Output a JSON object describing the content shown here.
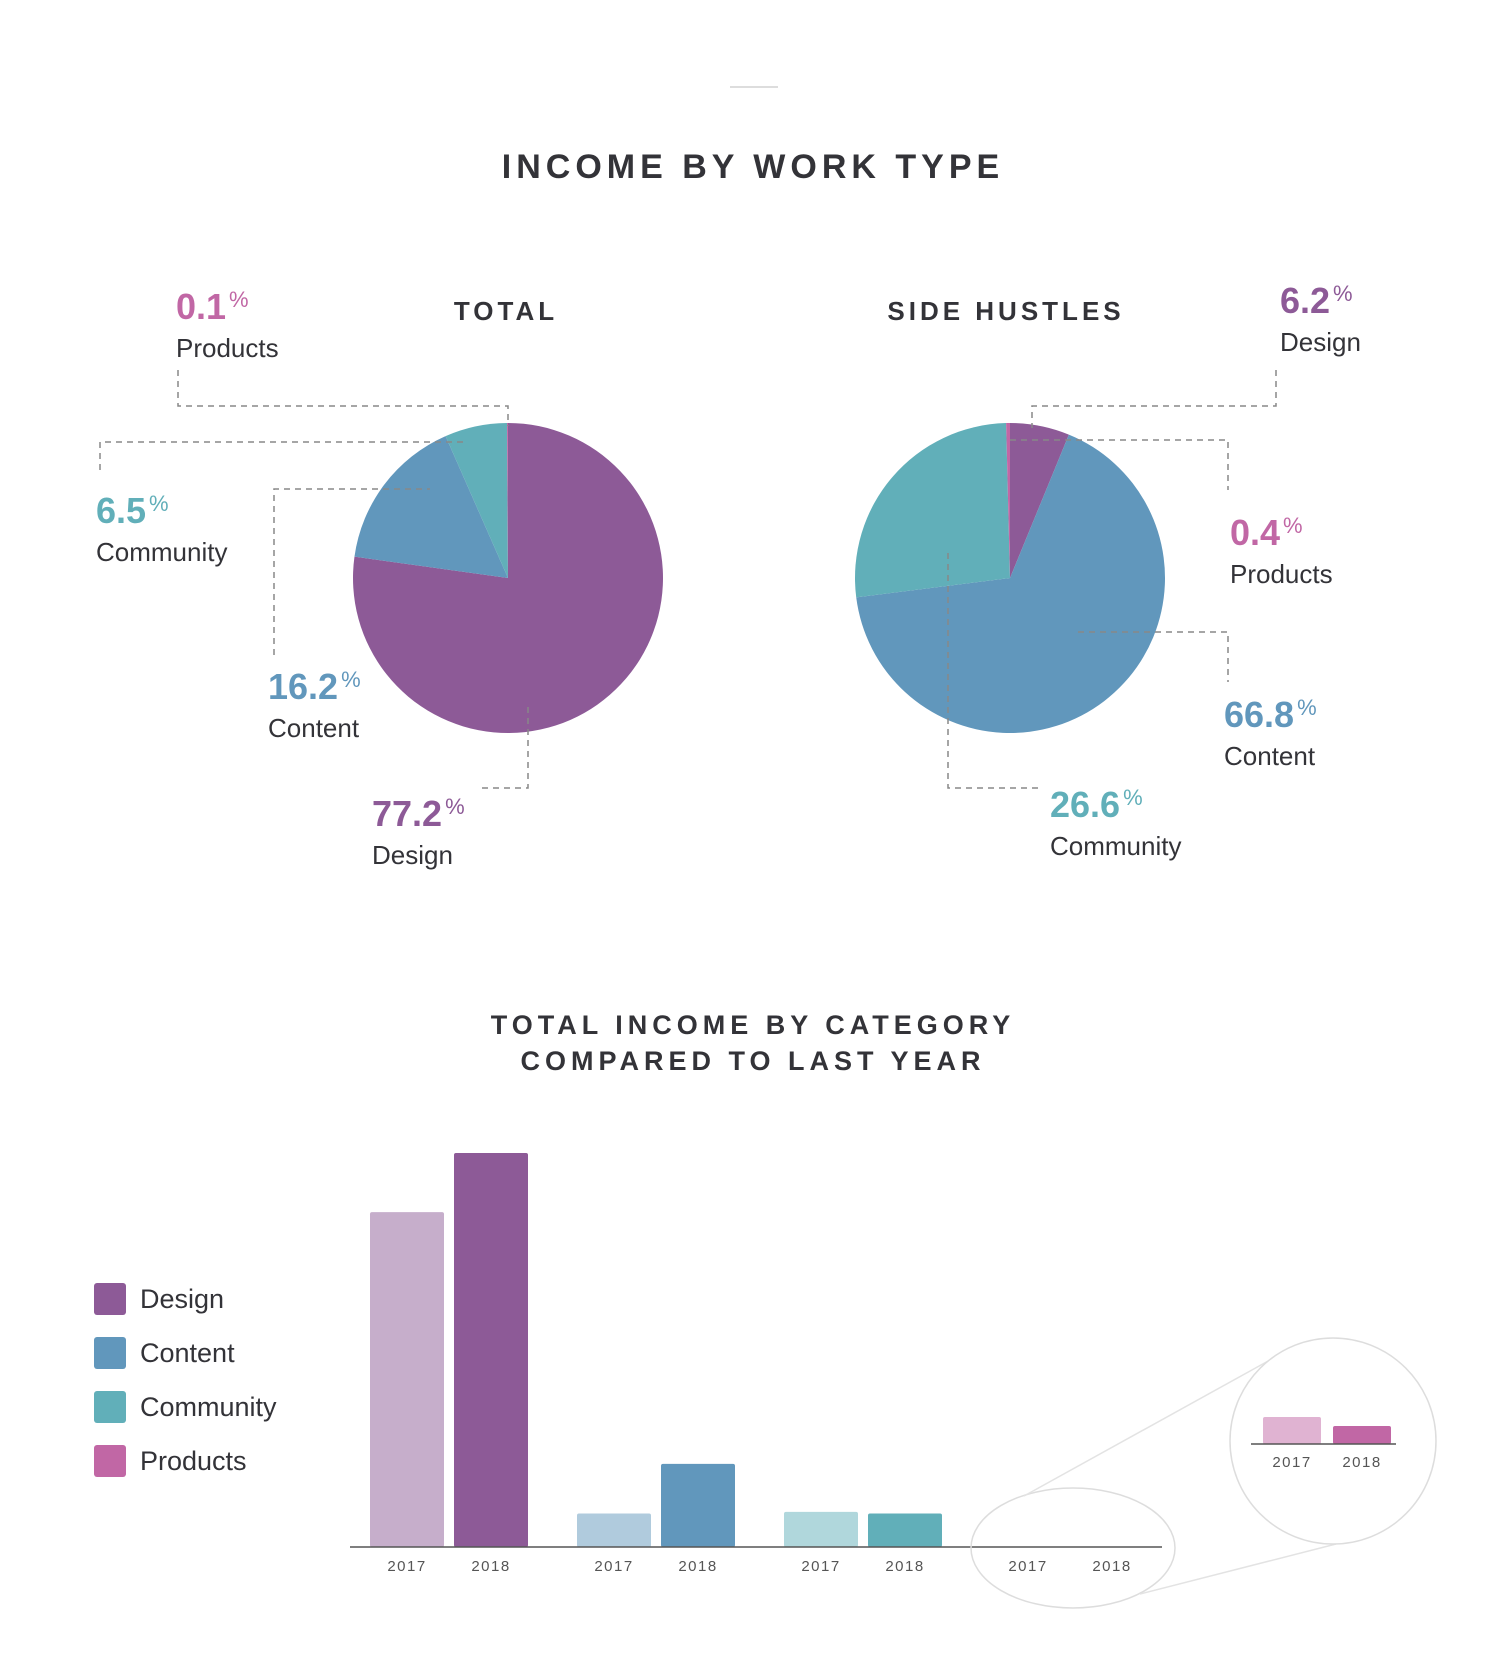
{
  "colors": {
    "design": "#8d5a97",
    "content": "#6197bc",
    "community": "#61afb9",
    "products": "#c167a5",
    "design_light": "#c6aecb",
    "content_light": "#b0cbdd",
    "community_light": "#b0d7dc",
    "products_light": "#e0b3d2"
  },
  "title": "INCOME BY WORK TYPE",
  "pies": {
    "left": {
      "title": "TOTAL",
      "slices": [
        {
          "label": "Design",
          "pct": "77.2",
          "color_key": "design"
        },
        {
          "label": "Content",
          "pct": "16.2",
          "color_key": "content"
        },
        {
          "label": "Community",
          "pct": "6.5",
          "color_key": "community"
        },
        {
          "label": "Products",
          "pct": "0.1",
          "color_key": "products"
        }
      ]
    },
    "right": {
      "title": "SIDE HUSTLES",
      "slices": [
        {
          "label": "Design",
          "pct": "6.2",
          "color_key": "design"
        },
        {
          "label": "Content",
          "pct": "66.8",
          "color_key": "content"
        },
        {
          "label": "Community",
          "pct": "26.6",
          "color_key": "community"
        },
        {
          "label": "Products",
          "pct": "0.4",
          "color_key": "products"
        }
      ]
    }
  },
  "percent_sign": "%",
  "bar_title_line1": "TOTAL INCOME BY CATEGORY",
  "bar_title_line2": "COMPARED TO LAST YEAR",
  "legend": [
    {
      "label": "Design",
      "color_key": "design"
    },
    {
      "label": "Content",
      "color_key": "content"
    },
    {
      "label": "Community",
      "color_key": "community"
    },
    {
      "label": "Products",
      "color_key": "products"
    }
  ],
  "chart_data": [
    {
      "type": "pie",
      "title": "TOTAL",
      "categories": [
        "Design",
        "Content",
        "Community",
        "Products"
      ],
      "values": [
        77.2,
        16.2,
        6.5,
        0.1
      ]
    },
    {
      "type": "pie",
      "title": "SIDE HUSTLES",
      "categories": [
        "Design",
        "Content",
        "Community",
        "Products"
      ],
      "values": [
        6.2,
        66.8,
        26.6,
        0.4
      ]
    },
    {
      "type": "bar",
      "title": "TOTAL INCOME BY CATEGORY COMPARED TO LAST YEAR",
      "categories": [
        "Design",
        "Content",
        "Community",
        "Products"
      ],
      "x_tick_labels": [
        "2017",
        "2018"
      ],
      "series": [
        {
          "name": "2017",
          "values": [
            85,
            8.5,
            8.9,
            0.06
          ]
        },
        {
          "name": "2018",
          "values": [
            100,
            21.1,
            8.5,
            0.04
          ]
        }
      ],
      "ylim": [
        0,
        100
      ],
      "inset": {
        "category": "Products",
        "values_2017": 0.06,
        "values_2018": 0.04
      }
    }
  ]
}
